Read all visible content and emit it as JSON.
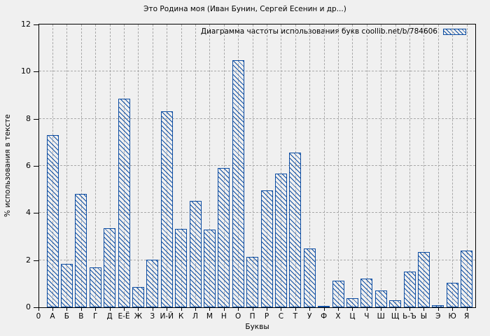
{
  "chart_data": {
    "type": "bar",
    "title": "Это Родина моя (Иван Бунин, Сергей Есенин и др...)",
    "legend": "Диаграмма частоты использования букв coollib.net/b/784606",
    "legend_position": "top-right",
    "xlabel": "Буквы",
    "ylabel": "% использования в тексте",
    "ylim": [
      0,
      12
    ],
    "yticks": [
      0,
      2,
      4,
      6,
      8,
      10,
      12
    ],
    "x_origin_label": "0",
    "grid": true,
    "categories": [
      "А",
      "Б",
      "В",
      "Г",
      "Д",
      "Е-Ё",
      "Ж",
      "З",
      "И-Й",
      "К",
      "Л",
      "М",
      "Н",
      "О",
      "П",
      "Р",
      "С",
      "Т",
      "У",
      "Ф",
      "Х",
      "Ц",
      "Ч",
      "Ш",
      "Щ",
      "Ь-Ъ",
      "Ы",
      "Э",
      "Ю",
      "Я"
    ],
    "values": [
      7.3,
      1.85,
      4.8,
      1.7,
      3.35,
      8.85,
      0.86,
      2.02,
      8.32,
      3.33,
      4.53,
      3.3,
      5.92,
      10.49,
      2.14,
      4.96,
      5.67,
      6.55,
      2.49,
      0.07,
      1.13,
      0.39,
      1.21,
      0.71,
      0.3,
      1.53,
      2.34,
      0.09,
      1.04,
      2.4
    ],
    "colors": {
      "bar": "#0d4da2",
      "background": "#f0f0f0",
      "grid": "#a9a9a9",
      "axis": "#000000",
      "text": "#000000"
    }
  }
}
